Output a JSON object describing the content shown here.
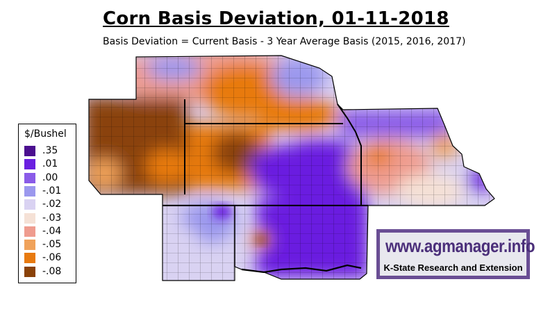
{
  "map": {
    "title": "Corn Basis Deviation, 01-11-2018",
    "subtitle": "Basis Deviation = Current Basis - 3 Year Average Basis (2015, 2016, 2017)",
    "units": "$/Bushel",
    "legend": [
      {
        "label": ".35",
        "color": "#4b0f8f"
      },
      {
        "label": ".01",
        "color": "#6a1fe0"
      },
      {
        "label": ".00",
        "color": "#8a5be8"
      },
      {
        "label": "-.01",
        "color": "#9b98ee"
      },
      {
        "label": "-.02",
        "color": "#d9d2f2"
      },
      {
        "label": "-.03",
        "color": "#f5e1d6"
      },
      {
        "label": "-.04",
        "color": "#ef9c8f"
      },
      {
        "label": "-.05",
        "color": "#f0a25a"
      },
      {
        "label": "-.06",
        "color": "#e87a10"
      },
      {
        "label": "-.08",
        "color": "#8a4208"
      }
    ]
  },
  "logo": {
    "url": "www.agmanager.info",
    "org": "K-State Research and Extension"
  }
}
